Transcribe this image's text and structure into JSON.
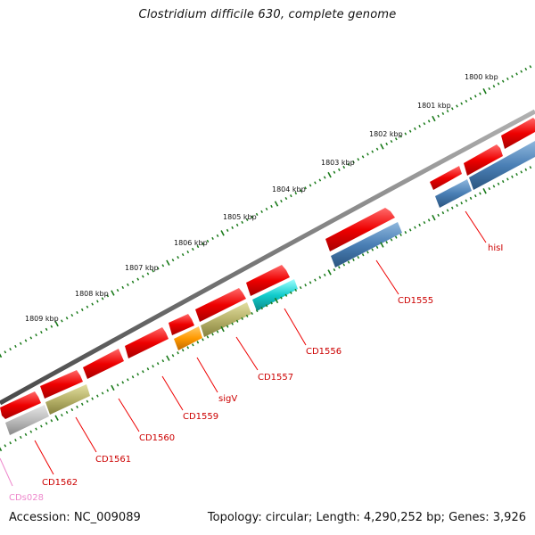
{
  "title": "Clostridium difficile 630, complete genome",
  "footer": {
    "accession": "Accession: NC_009089",
    "topology": "Topology: circular; Length: 4,290,252 bp; Genes: 3,926"
  },
  "scale_labels": [
    "1800 kbp",
    "1801 kbp",
    "1802 kbp",
    "1803 kbp",
    "1804 kbp",
    "1805 kbp",
    "1806 kbp",
    "1807 kbp",
    "1808 kbp",
    "1809 kbp"
  ],
  "gene_labels": {
    "hisI": "hisI",
    "cd1555": "CD1555",
    "cd1556": "CD1556",
    "cd1557": "CD1557",
    "sigV": "sigV",
    "cd1559": "CD1559",
    "cd1560": "CD1560",
    "cd1561": "CD1561",
    "cd1562": "CD1562",
    "cds028": "CDs028"
  },
  "colors": {
    "backbone": "#7a7a7a",
    "scale": "#1a7a1a",
    "gene_red": "#ee0000",
    "gene_blue": "#4a7fb5",
    "gene_cyan": "#11cccc",
    "gene_olive": "#b7b26a",
    "gene_orange": "#ff9900",
    "gene_grey": "#bcbcbc",
    "label_red": "#cc0000",
    "label_pink": "#ee88cc"
  }
}
